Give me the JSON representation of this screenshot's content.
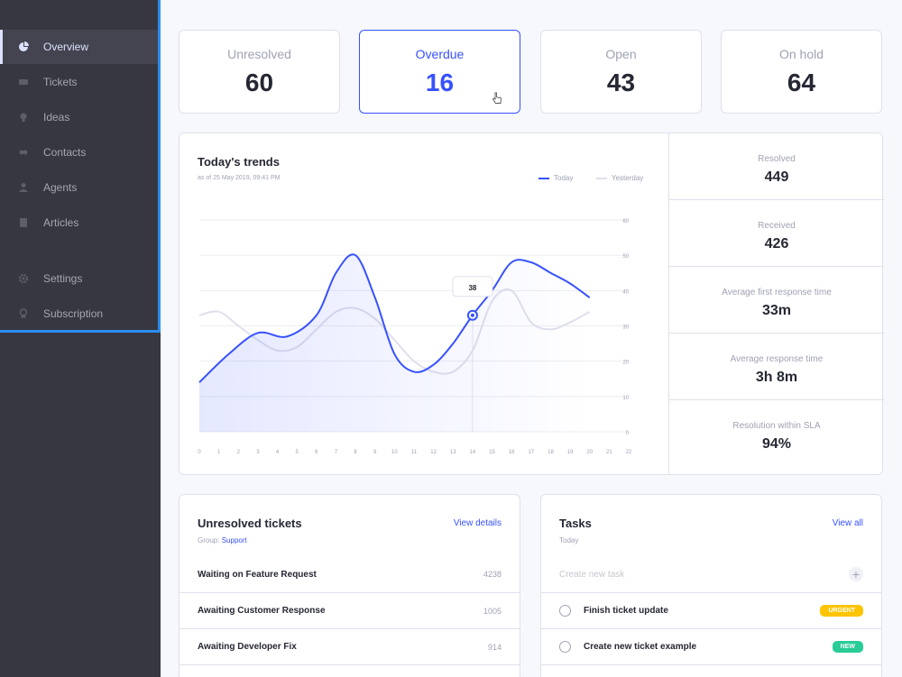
{
  "sidebar": {
    "items": [
      {
        "label": "Overview",
        "icon": "pie-chart-icon"
      },
      {
        "label": "Tickets",
        "icon": "ticket-icon"
      },
      {
        "label": "Ideas",
        "icon": "lightbulb-icon"
      },
      {
        "label": "Contacts",
        "icon": "contacts-icon"
      },
      {
        "label": "Agents",
        "icon": "agent-icon"
      },
      {
        "label": "Articles",
        "icon": "book-icon"
      },
      {
        "label": "Settings",
        "icon": "gear-icon"
      },
      {
        "label": "Subscription",
        "icon": "award-icon"
      }
    ]
  },
  "stats": [
    {
      "label": "Unresolved",
      "value": "60"
    },
    {
      "label": "Overdue",
      "value": "16"
    },
    {
      "label": "Open",
      "value": "43"
    },
    {
      "label": "On hold",
      "value": "64"
    }
  ],
  "trends": {
    "title": "Today's trends",
    "subtitle": "as of 25 May 2019, 09:41 PM",
    "legend_today": "Today",
    "legend_yesterday": "Yesterday",
    "tooltip": "38"
  },
  "side_stats": [
    {
      "label": "Resolved",
      "value": "449"
    },
    {
      "label": "Received",
      "value": "426"
    },
    {
      "label": "Average first response time",
      "value": "33m"
    },
    {
      "label": "Average response time",
      "value": "3h 8m"
    },
    {
      "label": "Resolution within SLA",
      "value": "94%"
    }
  ],
  "unresolved": {
    "title": "Unresolved tickets",
    "link": "View details",
    "group_prefix": "Group:",
    "group": "Support",
    "rows": [
      {
        "label": "Waiting on Feature Request",
        "count": "4238"
      },
      {
        "label": "Awaiting Customer Response",
        "count": "1005"
      },
      {
        "label": "Awaiting Developer Fix",
        "count": "914"
      }
    ]
  },
  "tasks": {
    "title": "Tasks",
    "link": "View all",
    "sub": "Today",
    "new_placeholder": "Create new task",
    "rows": [
      {
        "label": "Finish ticket update",
        "badge": "URGENT"
      },
      {
        "label": "Create new ticket example",
        "badge": "NEW"
      }
    ]
  },
  "chart_data": {
    "type": "area",
    "x": [
      0,
      1,
      2,
      3,
      4,
      5,
      6,
      7,
      8,
      9,
      10,
      11,
      12,
      13,
      14,
      15,
      16,
      17,
      18,
      19,
      20,
      21,
      22
    ],
    "x_ticks": [
      "0",
      "1",
      "2",
      "3",
      "4",
      "5",
      "6",
      "7",
      "8",
      "9",
      "10",
      "11",
      "12",
      "13",
      "14",
      "15",
      "16",
      "17",
      "18",
      "19",
      "20",
      "21",
      "22"
    ],
    "y_ticks": [
      "0",
      "10",
      "20",
      "30",
      "40",
      "50",
      "60"
    ],
    "ylim": [
      0,
      60
    ],
    "series": [
      {
        "name": "Today",
        "color": "#3751ff",
        "x": [
          0,
          1.5,
          3,
          4.5,
          6,
          7,
          8,
          9,
          10,
          11,
          12,
          13,
          14,
          15,
          16,
          17,
          18,
          19,
          20
        ],
        "values": [
          14,
          22,
          28,
          27,
          33,
          45,
          50,
          38,
          22,
          17,
          19,
          25,
          33,
          40,
          48,
          48,
          45,
          42,
          38
        ]
      },
      {
        "name": "Yesterday",
        "color": "#dfe0eb",
        "x": [
          0,
          1,
          2,
          3,
          4,
          5,
          6,
          7,
          8,
          9,
          10,
          11,
          12,
          13,
          14,
          15,
          16,
          17,
          18,
          19,
          20
        ],
        "values": [
          33,
          34,
          30,
          26,
          23,
          24,
          29,
          34,
          35,
          32,
          26,
          20,
          17,
          17,
          23,
          37,
          40,
          31,
          29,
          31,
          34
        ]
      }
    ],
    "annotations": [
      {
        "x": 14,
        "label": "38"
      }
    ]
  }
}
